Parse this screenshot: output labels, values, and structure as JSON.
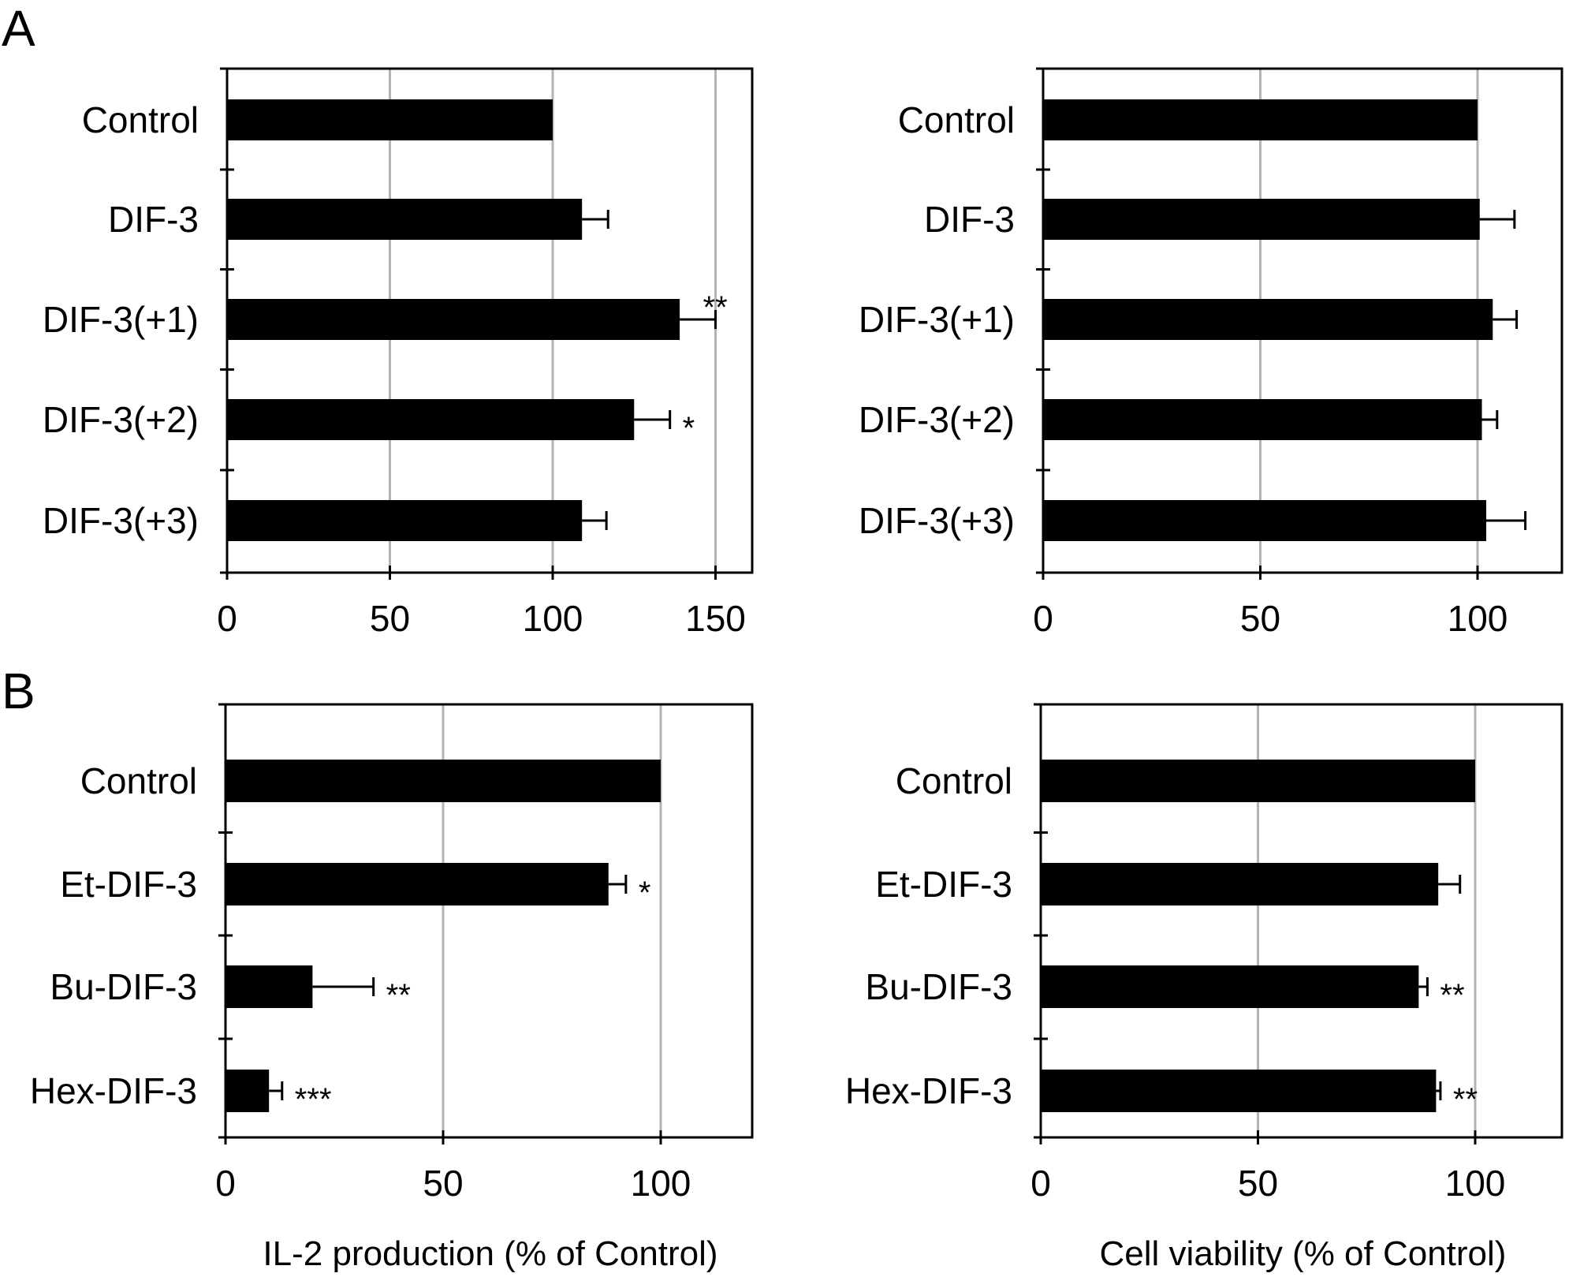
{
  "panels": {
    "A": "A",
    "B": "B"
  },
  "chart_data": [
    {
      "type": "bar",
      "orientation": "horizontal",
      "panel": "A",
      "categories": [
        "Control",
        "DIF-3",
        "DIF-3(+1)",
        "DIF-3(+2)",
        "DIF-3(+3)"
      ],
      "values": [
        100,
        109,
        139,
        125,
        109
      ],
      "errors": [
        0,
        8,
        11,
        11,
        7.5
      ],
      "significance": [
        "",
        "",
        "**",
        "*",
        ""
      ],
      "xlim": [
        0,
        160
      ],
      "xticks": [
        0,
        50,
        100,
        150
      ],
      "gridlines": [
        50,
        100,
        150
      ],
      "xlabel": "",
      "title": ""
    },
    {
      "type": "bar",
      "orientation": "horizontal",
      "panel": "A",
      "categories": [
        "Control",
        "DIF-3",
        "DIF-3(+1)",
        "DIF-3(+2)",
        "DIF-3(+3)"
      ],
      "values": [
        100,
        100.5,
        103.5,
        101,
        102
      ],
      "errors": [
        0,
        8,
        5.5,
        3.5,
        9
      ],
      "significance": [
        "",
        "",
        "",
        "",
        ""
      ],
      "xlim": [
        0,
        120
      ],
      "xticks": [
        0,
        50,
        100
      ],
      "gridlines": [
        50,
        100
      ],
      "xlabel": "",
      "title": ""
    },
    {
      "type": "bar",
      "orientation": "horizontal",
      "panel": "B",
      "categories": [
        "Control",
        "Et-DIF-3",
        "Bu-DIF-3",
        "Hex-DIF-3"
      ],
      "values": [
        100,
        88,
        20,
        10
      ],
      "errors": [
        0,
        4,
        14,
        3
      ],
      "significance": [
        "",
        "*",
        "**",
        "***"
      ],
      "xlim": [
        0,
        120
      ],
      "xticks": [
        0,
        50,
        100
      ],
      "gridlines": [
        50,
        100
      ],
      "xlabel": "IL-2 production (% of Control)",
      "title": ""
    },
    {
      "type": "bar",
      "orientation": "horizontal",
      "panel": "B",
      "categories": [
        "Control",
        "Et-DIF-3",
        "Bu-DIF-3",
        "Hex-DIF-3"
      ],
      "values": [
        100,
        91.5,
        87,
        91
      ],
      "errors": [
        0,
        5,
        2,
        1
      ],
      "significance": [
        "",
        "",
        "**",
        "**"
      ],
      "xlim": [
        0,
        120
      ],
      "xticks": [
        0,
        50,
        100
      ],
      "gridlines": [
        50,
        100
      ],
      "xlabel": "Cell viability (% of Control)",
      "title": ""
    }
  ]
}
